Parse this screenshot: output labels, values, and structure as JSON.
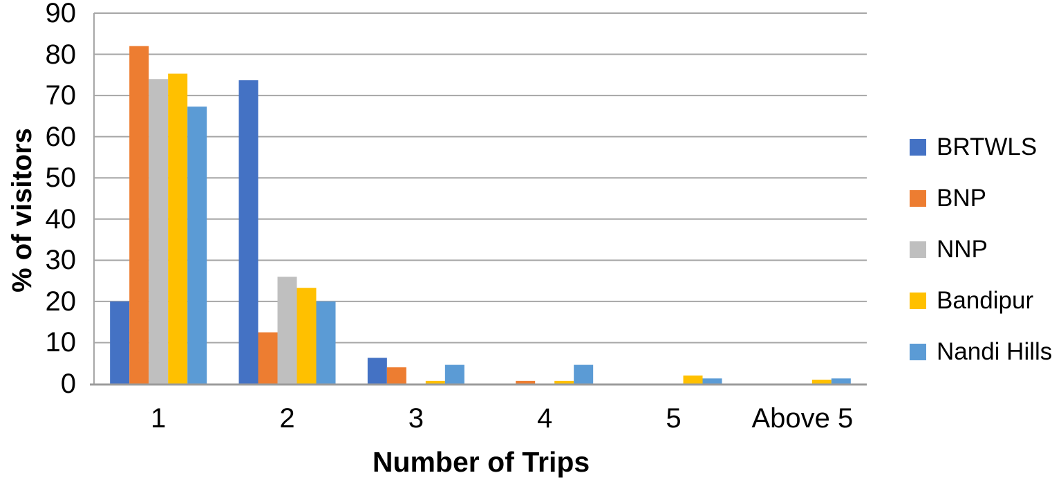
{
  "chart_data": {
    "type": "bar",
    "title": "",
    "xlabel": "Number of Trips",
    "ylabel": "% of visitors",
    "categories": [
      "1",
      "2",
      "3",
      "4",
      "5",
      "Above 5"
    ],
    "series": [
      {
        "name": "BRTWLS",
        "color": "#4472C4",
        "values": [
          20,
          73.7,
          6.3,
          0,
          0,
          0
        ]
      },
      {
        "name": "BNP",
        "color": "#ED7D31",
        "values": [
          82,
          12.5,
          4,
          0.7,
          0,
          0
        ]
      },
      {
        "name": "NNP",
        "color": "#BFBFBF",
        "values": [
          74,
          26,
          0,
          0,
          0,
          0
        ]
      },
      {
        "name": "Bandipur",
        "color": "#FFC000",
        "values": [
          75.3,
          23.3,
          0.7,
          0.7,
          2,
          1
        ]
      },
      {
        "name": "Nandi Hills",
        "color": "#5B9BD5",
        "values": [
          67.3,
          20,
          4.6,
          4.6,
          1.3,
          1.3
        ]
      }
    ],
    "ylim": [
      0,
      90
    ],
    "ytick_step": 10,
    "grid": true,
    "legend_position": "right",
    "colors": {
      "gridline": "#A6A6A6",
      "axis_line": "#9B9B9B",
      "text": "#000000",
      "background": "#FFFFFF"
    }
  }
}
